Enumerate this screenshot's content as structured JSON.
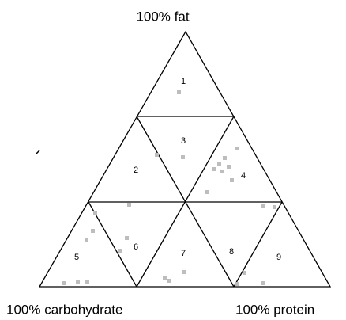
{
  "corners": {
    "top": "100% fat",
    "left": "100% carbohydrate",
    "right": "100% protein"
  },
  "regions": [
    "1",
    "2",
    "3",
    "4",
    "5",
    "6",
    "7",
    "8",
    "9"
  ]
}
